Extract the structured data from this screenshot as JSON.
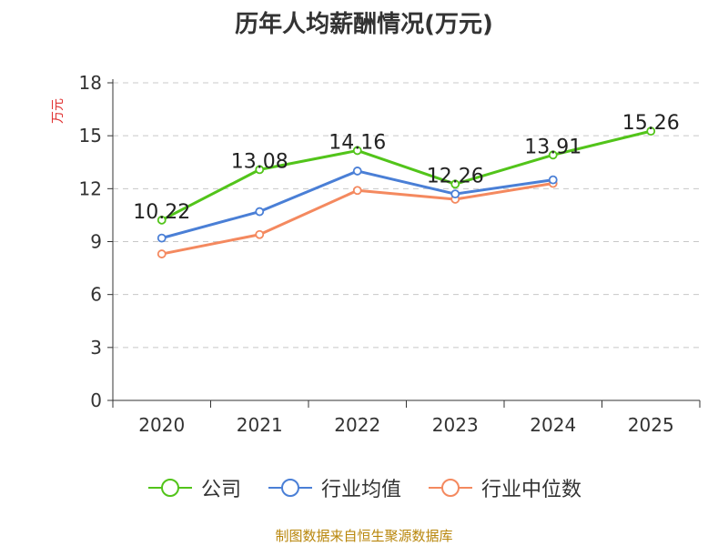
{
  "chart_data": {
    "type": "line",
    "title": "历年人均薪酬情况(万元)",
    "ylabel": "万元",
    "ylim": [
      0,
      18
    ],
    "yticks": [
      0,
      3,
      6,
      9,
      12,
      15,
      18
    ],
    "categories": [
      "2020",
      "2021",
      "2022",
      "2023",
      "2024",
      "2025"
    ],
    "grid": true,
    "legend_position": "bottom",
    "series": [
      {
        "name": "公司",
        "color": "#52c41a",
        "values": [
          10.22,
          13.08,
          14.16,
          12.26,
          13.91,
          15.26
        ],
        "data_labels": [
          "10.22",
          "13.08",
          "14.16",
          "12.26",
          "13.91",
          "15.26"
        ]
      },
      {
        "name": "行业均值",
        "color": "#4a7fd6",
        "values": [
          9.2,
          10.7,
          13.0,
          11.7,
          12.5,
          null
        ]
      },
      {
        "name": "行业中位数",
        "color": "#f4895f",
        "values": [
          8.3,
          9.4,
          11.9,
          11.4,
          12.3,
          null
        ]
      }
    ]
  },
  "source": "制图数据来自恒生聚源数据库"
}
